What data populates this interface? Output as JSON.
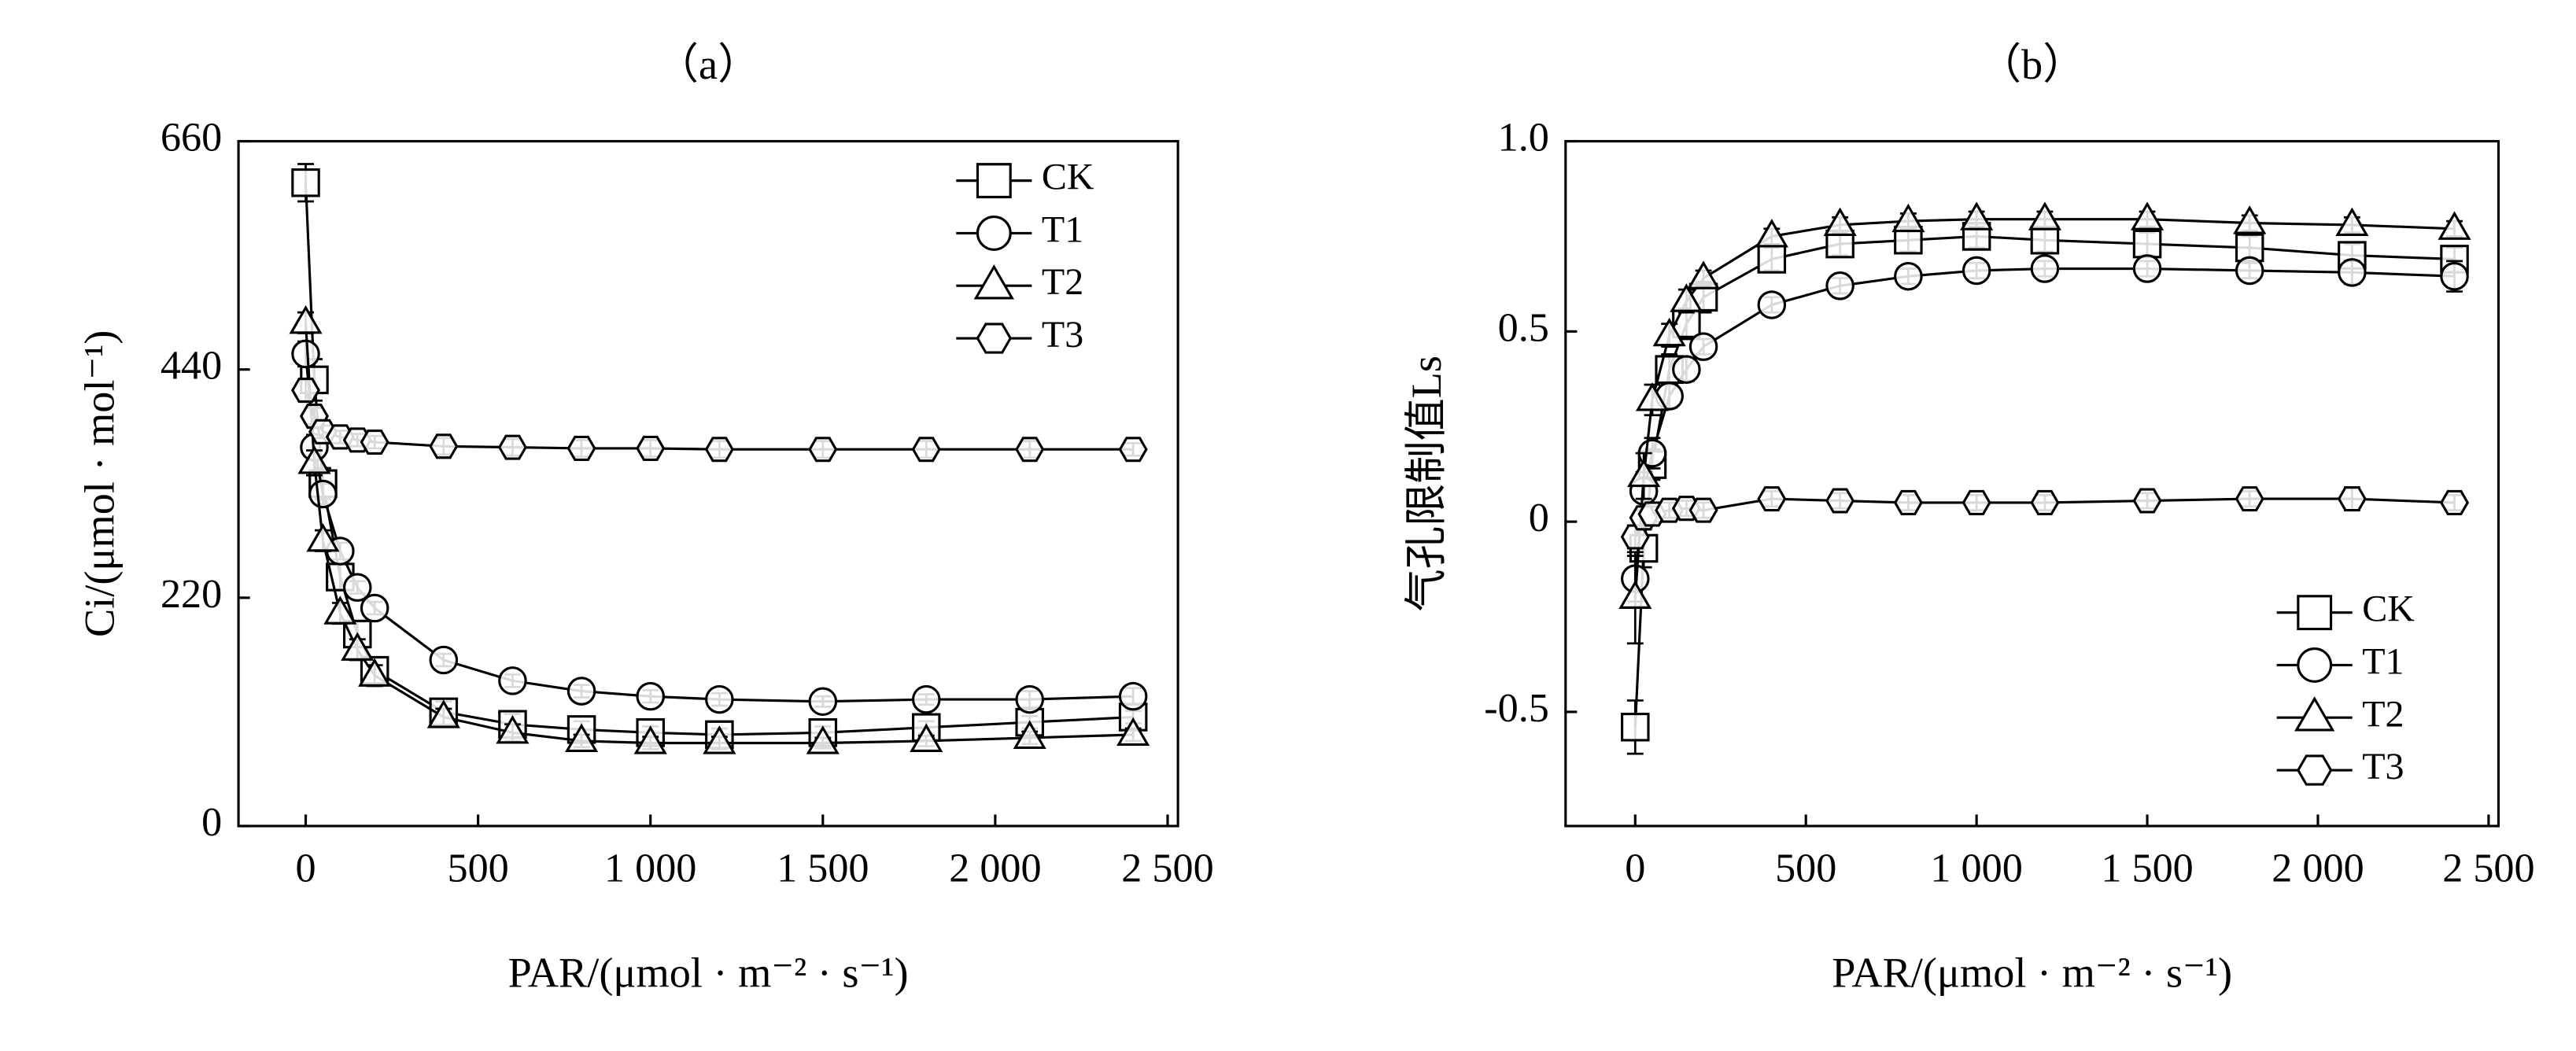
{
  "chart_data": [
    {
      "type": "line",
      "title": "（a）",
      "xlabel": "PAR/(μmol · m⁻² · s⁻¹)",
      "ylabel": "Ci/(μmol · mol⁻¹)",
      "x": [
        0,
        25,
        50,
        100,
        150,
        200,
        400,
        600,
        800,
        1000,
        1200,
        1500,
        1800,
        2100,
        2400
      ],
      "xlim": [
        -195,
        2530
      ],
      "ylim": [
        0,
        660
      ],
      "xticks": [
        0,
        500,
        {
          "value": 1000,
          "label": "1 000"
        },
        {
          "value": 1500,
          "label": "1 500"
        },
        {
          "value": 2000,
          "label": "2 000"
        },
        {
          "value": 2500,
          "label": "2 500"
        }
      ],
      "yticks": [
        0,
        220,
        440,
        660
      ],
      "legend": "upper right",
      "series": [
        {
          "name": "CK",
          "marker": "square",
          "color": "#000000",
          "values": [
            620,
            430,
            330,
            240,
            185,
            150,
            110,
            98,
            93,
            90,
            88,
            90,
            95,
            100,
            105
          ],
          "errors": [
            18,
            20,
            15,
            12,
            12,
            12,
            10,
            10,
            8,
            6,
            6,
            6,
            6,
            6,
            6
          ]
        },
        {
          "name": "T1",
          "marker": "circle",
          "color": "#000000",
          "values": [
            455,
            365,
            320,
            265,
            230,
            210,
            160,
            140,
            130,
            125,
            122,
            120,
            122,
            122,
            125
          ],
          "errors": [
            12,
            12,
            10,
            8,
            6,
            6,
            6,
            6,
            6,
            6,
            6,
            5,
            5,
            8,
            8
          ]
        },
        {
          "name": "T2",
          "marker": "triangle",
          "color": "#000000",
          "values": [
            485,
            350,
            275,
            205,
            170,
            145,
            105,
            90,
            82,
            80,
            80,
            80,
            82,
            85,
            88
          ],
          "errors": [
            10,
            12,
            10,
            10,
            10,
            10,
            8,
            8,
            6,
            6,
            6,
            5,
            5,
            6,
            6
          ]
        },
        {
          "name": "T3",
          "marker": "hexagon",
          "color": "#000000",
          "values": [
            420,
            395,
            380,
            375,
            372,
            370,
            366,
            365,
            364,
            364,
            363,
            363,
            363,
            363,
            363
          ],
          "errors": [
            10,
            8,
            6,
            6,
            6,
            6,
            8,
            8,
            8,
            8,
            8,
            8,
            8,
            8,
            6
          ]
        }
      ]
    },
    {
      "type": "line",
      "title": "（b）",
      "xlabel": "PAR/(μmol · m⁻² · s⁻¹)",
      "ylabel": "气孔限制值Ls",
      "x": [
        0,
        25,
        50,
        100,
        150,
        200,
        400,
        600,
        800,
        1000,
        1200,
        1500,
        1800,
        2100,
        2400
      ],
      "xlim": [
        -204,
        2529
      ],
      "ylim": [
        -0.8,
        1.0
      ],
      "xticks": [
        0,
        500,
        {
          "value": 1000,
          "label": "1 000"
        },
        {
          "value": 1500,
          "label": "1 500"
        },
        {
          "value": 2000,
          "label": "2 000"
        },
        {
          "value": 2500,
          "label": "2 500"
        }
      ],
      "yticks": [
        -0.5,
        0,
        0.5,
        {
          "value": 1,
          "label": "1.0"
        }
      ],
      "legend": "lower right",
      "series": [
        {
          "name": "CK",
          "marker": "square",
          "color": "#000000",
          "values": [
            -0.54,
            -0.07,
            0.15,
            0.4,
            0.52,
            0.59,
            0.69,
            0.73,
            0.74,
            0.75,
            0.74,
            0.73,
            0.72,
            0.7,
            0.69
          ],
          "errors": [
            0.07,
            0.05,
            0.04,
            0.04,
            0.04,
            0.04,
            0.03,
            0.03,
            0.03,
            0.03,
            0.03,
            0.03,
            0.03,
            0.03,
            0.03
          ]
        },
        {
          "name": "T1",
          "marker": "circle",
          "color": "#000000",
          "values": [
            -0.15,
            0.08,
            0.18,
            0.33,
            0.4,
            0.46,
            0.57,
            0.62,
            0.645,
            0.66,
            0.665,
            0.665,
            0.66,
            0.655,
            0.645
          ],
          "errors": [
            0.06,
            0.05,
            0.04,
            0.03,
            0.03,
            0.02,
            0.02,
            0.02,
            0.02,
            0.02,
            0.02,
            0.02,
            0.02,
            0.03,
            0.04
          ]
        },
        {
          "name": "T2",
          "marker": "triangle",
          "color": "#000000",
          "values": [
            -0.2,
            0.12,
            0.32,
            0.49,
            0.58,
            0.64,
            0.75,
            0.78,
            0.79,
            0.795,
            0.795,
            0.795,
            0.785,
            0.78,
            0.77
          ],
          "errors": [
            0.12,
            0.06,
            0.04,
            0.03,
            0.03,
            0.02,
            0.02,
            0.02,
            0.02,
            0.02,
            0.02,
            0.02,
            0.02,
            0.02,
            0.02
          ]
        },
        {
          "name": "T3",
          "marker": "hexagon",
          "color": "#000000",
          "values": [
            -0.04,
            0.01,
            0.02,
            0.03,
            0.035,
            0.03,
            0.06,
            0.055,
            0.05,
            0.05,
            0.05,
            0.055,
            0.06,
            0.06,
            0.05
          ],
          "errors": [
            0.03,
            0.02,
            0.02,
            0.02,
            0.02,
            0.02,
            0.02,
            0.02,
            0.02,
            0.02,
            0.02,
            0.02,
            0.02,
            0.03,
            0.02
          ]
        }
      ]
    }
  ]
}
